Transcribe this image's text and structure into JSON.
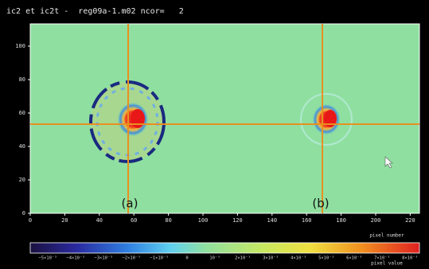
{
  "title": "ic2 et ic2t -  reg09a-1.m02 ncor=   2",
  "y_ticks": [
    0,
    20,
    40,
    60,
    80,
    100
  ],
  "x_ticks": [
    0,
    20,
    40,
    60,
    80,
    100,
    120,
    140,
    160,
    180,
    200,
    220
  ],
  "x_axis_label": "pixel number",
  "labels": [
    "(a)",
    "(b)"
  ],
  "colorbar": {
    "ticks": [
      "−5×10⁻³",
      "−4×10⁻³",
      "−3×10⁻³",
      "−2×10⁻³",
      "−1×10⁻³",
      "0",
      "10⁻³",
      "2×10⁻³",
      "3×10⁻³",
      "4×10⁻³",
      "5×10⁻³",
      "6×10⁻³",
      "7×10⁻³",
      "8×10⁻³"
    ],
    "label": "pixel value"
  }
}
